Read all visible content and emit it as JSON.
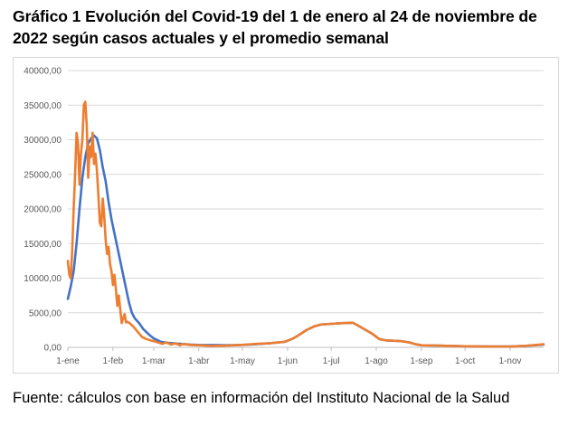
{
  "page": {
    "title": "Gráfico 1  Evolución del Covid-19 del 1 de enero al 24 de noviembre de 2022 según casos actuales y el promedio semanal",
    "source": "Fuente: cálculos con base en información del Instituto Nacional de la Salud"
  },
  "chart_data": {
    "type": "line",
    "title": "",
    "xlabel": "",
    "ylabel": "",
    "ylim": [
      0,
      40000
    ],
    "yticks": [
      "0,00",
      "5000,00",
      "10000,00",
      "15000,00",
      "20000,00",
      "25000,00",
      "30000,00",
      "35000,00",
      "40000,00"
    ],
    "x_tick_labels": [
      "1-ene",
      "1-feb",
      "1-mar",
      "1-abr",
      "1-may",
      "1-jun",
      "1-jul",
      "1-ago",
      "1-sep",
      "1-oct",
      "1-nov"
    ],
    "x_tick_day_of_year": [
      1,
      32,
      60,
      91,
      121,
      152,
      182,
      213,
      244,
      274,
      305
    ],
    "xlim_day_of_year": [
      1,
      328
    ],
    "grid": true,
    "legend": "none",
    "series": [
      {
        "color": "#4472c4",
        "points": [
          [
            1,
            7000
          ],
          [
            3,
            8800
          ],
          [
            5,
            11000
          ],
          [
            7,
            15000
          ],
          [
            9,
            20000
          ],
          [
            11,
            24500
          ],
          [
            13,
            27500
          ],
          [
            15,
            29500
          ],
          [
            17,
            30200
          ],
          [
            19,
            30600
          ],
          [
            21,
            30200
          ],
          [
            23,
            28500
          ],
          [
            25,
            26000
          ],
          [
            27,
            24000
          ],
          [
            29,
            21000
          ],
          [
            31,
            18500
          ],
          [
            33,
            16500
          ],
          [
            35,
            14500
          ],
          [
            37,
            12500
          ],
          [
            39,
            10500
          ],
          [
            41,
            8500
          ],
          [
            43,
            6500
          ],
          [
            45,
            5000
          ],
          [
            47,
            4200
          ],
          [
            50,
            3500
          ],
          [
            53,
            2600
          ],
          [
            57,
            1800
          ],
          [
            60,
            1300
          ],
          [
            65,
            800
          ],
          [
            70,
            650
          ],
          [
            75,
            550
          ],
          [
            80,
            480
          ],
          [
            85,
            400
          ],
          [
            91,
            350
          ],
          [
            100,
            330
          ],
          [
            110,
            300
          ],
          [
            121,
            350
          ],
          [
            130,
            450
          ],
          [
            140,
            600
          ],
          [
            150,
            800
          ],
          [
            155,
            1200
          ],
          [
            160,
            1800
          ],
          [
            165,
            2500
          ],
          [
            170,
            3000
          ],
          [
            175,
            3300
          ],
          [
            182,
            3400
          ],
          [
            190,
            3500
          ],
          [
            197,
            3550
          ],
          [
            200,
            3200
          ],
          [
            205,
            2600
          ],
          [
            210,
            2000
          ],
          [
            215,
            1200
          ],
          [
            220,
            1000
          ],
          [
            230,
            900
          ],
          [
            236,
            700
          ],
          [
            240,
            450
          ],
          [
            244,
            300
          ],
          [
            255,
            250
          ],
          [
            274,
            150
          ],
          [
            290,
            120
          ],
          [
            305,
            120
          ],
          [
            315,
            200
          ],
          [
            328,
            400
          ]
        ]
      },
      {
        "color": "#ed7d31",
        "points": [
          [
            1,
            12500
          ],
          [
            2,
            10500
          ],
          [
            3,
            10000
          ],
          [
            4,
            14000
          ],
          [
            5,
            20000
          ],
          [
            6,
            25000
          ],
          [
            7,
            31000
          ],
          [
            8,
            29500
          ],
          [
            9,
            23500
          ],
          [
            10,
            28000
          ],
          [
            11,
            30000
          ],
          [
            12,
            35000
          ],
          [
            13,
            35500
          ],
          [
            14,
            32000
          ],
          [
            15,
            24500
          ],
          [
            16,
            29000
          ],
          [
            17,
            27500
          ],
          [
            18,
            31000
          ],
          [
            19,
            26500
          ],
          [
            20,
            28000
          ],
          [
            21,
            25500
          ],
          [
            22,
            22000
          ],
          [
            23,
            18000
          ],
          [
            24,
            17500
          ],
          [
            25,
            21500
          ],
          [
            26,
            19000
          ],
          [
            27,
            15500
          ],
          [
            28,
            13500
          ],
          [
            29,
            14500
          ],
          [
            30,
            12000
          ],
          [
            31,
            11000
          ],
          [
            32,
            9000
          ],
          [
            33,
            10500
          ],
          [
            34,
            8500
          ],
          [
            35,
            6000
          ],
          [
            36,
            7500
          ],
          [
            37,
            5500
          ],
          [
            38,
            3500
          ],
          [
            39,
            4200
          ],
          [
            40,
            4800
          ],
          [
            41,
            3600
          ],
          [
            42,
            3700
          ],
          [
            44,
            3400
          ],
          [
            46,
            3000
          ],
          [
            48,
            2500
          ],
          [
            50,
            2000
          ],
          [
            52,
            1500
          ],
          [
            55,
            1200
          ],
          [
            58,
            1000
          ],
          [
            60,
            900
          ],
          [
            63,
            700
          ],
          [
            66,
            500
          ],
          [
            68,
            700
          ],
          [
            70,
            600
          ],
          [
            72,
            400
          ],
          [
            75,
            600
          ],
          [
            78,
            300
          ],
          [
            80,
            500
          ],
          [
            85,
            350
          ],
          [
            91,
            300
          ],
          [
            100,
            200
          ],
          [
            110,
            250
          ],
          [
            121,
            350
          ],
          [
            130,
            500
          ],
          [
            140,
            600
          ],
          [
            150,
            800
          ],
          [
            155,
            1200
          ],
          [
            160,
            1800
          ],
          [
            165,
            2500
          ],
          [
            170,
            3000
          ],
          [
            175,
            3300
          ],
          [
            182,
            3400
          ],
          [
            190,
            3500
          ],
          [
            197,
            3550
          ],
          [
            200,
            3200
          ],
          [
            205,
            2600
          ],
          [
            210,
            2000
          ],
          [
            215,
            1200
          ],
          [
            220,
            1000
          ],
          [
            230,
            900
          ],
          [
            236,
            700
          ],
          [
            240,
            450
          ],
          [
            244,
            300
          ],
          [
            255,
            250
          ],
          [
            274,
            150
          ],
          [
            290,
            120
          ],
          [
            305,
            120
          ],
          [
            315,
            200
          ],
          [
            328,
            450
          ]
        ]
      }
    ]
  }
}
